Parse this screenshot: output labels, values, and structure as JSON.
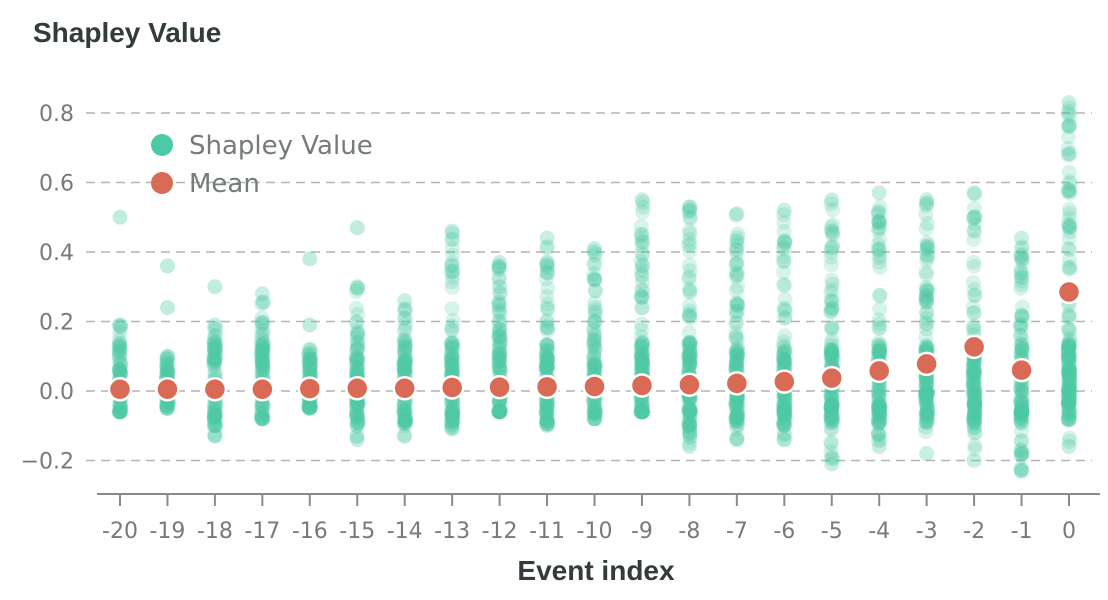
{
  "colors": {
    "shapley": "#4cc9a6",
    "mean": "#d96a55",
    "grid": "#b4b4b4",
    "axis": "#8a8a8a",
    "text_dark": "#333b3b",
    "text_muted": "#757b7b"
  },
  "chart_data": {
    "type": "scatter",
    "title": "Shapley Value",
    "xlabel": "Event index",
    "ylabel": "",
    "ylim": [
      -0.27,
      0.87
    ],
    "yticks": [
      -0.2,
      0.0,
      0.2,
      0.4,
      0.6,
      0.8
    ],
    "ytick_labels": [
      "−0.2",
      "0.0",
      "0.2",
      "0.4",
      "0.6",
      "0.8"
    ],
    "categories": [
      "-20",
      "-19",
      "-18",
      "-17",
      "-16",
      "-15",
      "-14",
      "-13",
      "-12",
      "-11",
      "-10",
      "-9",
      "-8",
      "-7",
      "-6",
      "-5",
      "-4",
      "-3",
      "-2",
      "-1",
      "0"
    ],
    "grid": "horizontal dashed",
    "legend_position": "top-left",
    "series": [
      {
        "name": "Shapley Value",
        "kind": "distribution",
        "ranges": [
          [
            -0.06,
            0.19
          ],
          [
            -0.05,
            0.1
          ],
          [
            -0.13,
            0.19
          ],
          [
            -0.08,
            0.28
          ],
          [
            -0.05,
            0.12
          ],
          [
            -0.14,
            0.3
          ],
          [
            -0.13,
            0.26
          ],
          [
            -0.11,
            0.46
          ],
          [
            -0.06,
            0.37
          ],
          [
            -0.1,
            0.44
          ],
          [
            -0.08,
            0.41
          ],
          [
            -0.06,
            0.55
          ],
          [
            -0.16,
            0.53
          ],
          [
            -0.14,
            0.51
          ],
          [
            -0.14,
            0.52
          ],
          [
            -0.21,
            0.55
          ],
          [
            -0.16,
            0.57
          ],
          [
            -0.18,
            0.55
          ],
          [
            -0.2,
            0.57
          ],
          [
            -0.23,
            0.44
          ],
          [
            -0.16,
            0.83
          ]
        ],
        "outliers": [
          [
            -20,
            0.5
          ],
          [
            -19,
            0.36
          ],
          [
            -19,
            0.24
          ],
          [
            -18,
            0.3
          ],
          [
            -16,
            0.38
          ],
          [
            -16,
            0.19
          ],
          [
            -15,
            0.47
          ],
          [
            -12,
            0.3
          ]
        ]
      },
      {
        "name": "Mean",
        "values": [
          0.005,
          0.005,
          0.005,
          0.005,
          0.007,
          0.008,
          0.008,
          0.01,
          0.011,
          0.012,
          0.013,
          0.016,
          0.018,
          0.022,
          0.027,
          0.037,
          0.058,
          0.078,
          0.127,
          0.06,
          0.285
        ]
      }
    ]
  }
}
